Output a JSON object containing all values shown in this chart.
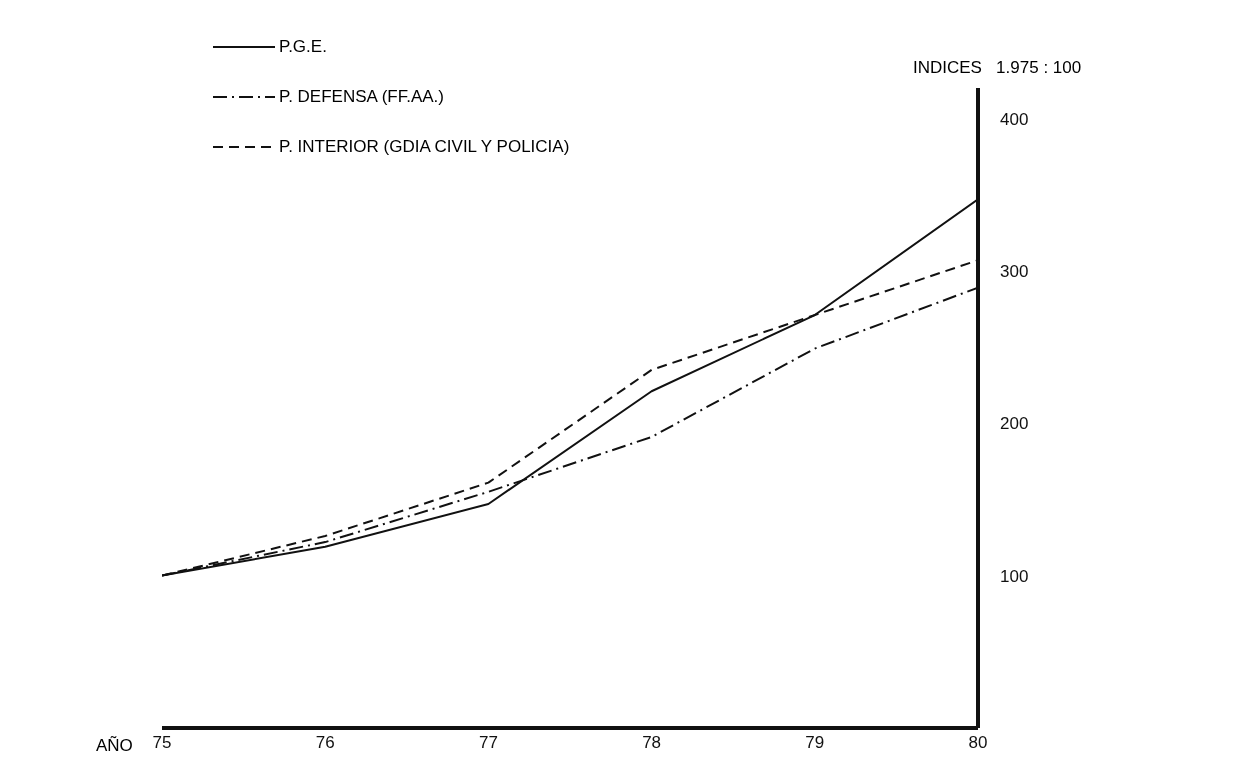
{
  "chart_data": {
    "type": "line",
    "xlabel": "AÑO",
    "ylabel": "INDICES   1.975 : 100",
    "categories": [
      "75",
      "76",
      "77",
      "78",
      "79",
      "80"
    ],
    "series": [
      {
        "name": "P.G.E.",
        "color": "#111111",
        "line_style": "solid",
        "values": [
          100,
          119,
          147,
          221,
          271,
          347
        ]
      },
      {
        "name": "P. DEFENSA (FF.AA.)",
        "color": "#111111",
        "line_style": "dashdot",
        "values": [
          100,
          122,
          155,
          191,
          249,
          289
        ]
      },
      {
        "name": "P. INTERIOR (GDIA CIVIL Y POLICIA)",
        "color": "#111111",
        "line_style": "dashed",
        "values": [
          100,
          126,
          161,
          235,
          271,
          307
        ]
      }
    ],
    "ylim": [
      0,
      420
    ],
    "yticks": [
      100,
      200,
      300,
      400
    ],
    "grid": false,
    "legend": "top left",
    "marker": "none"
  }
}
